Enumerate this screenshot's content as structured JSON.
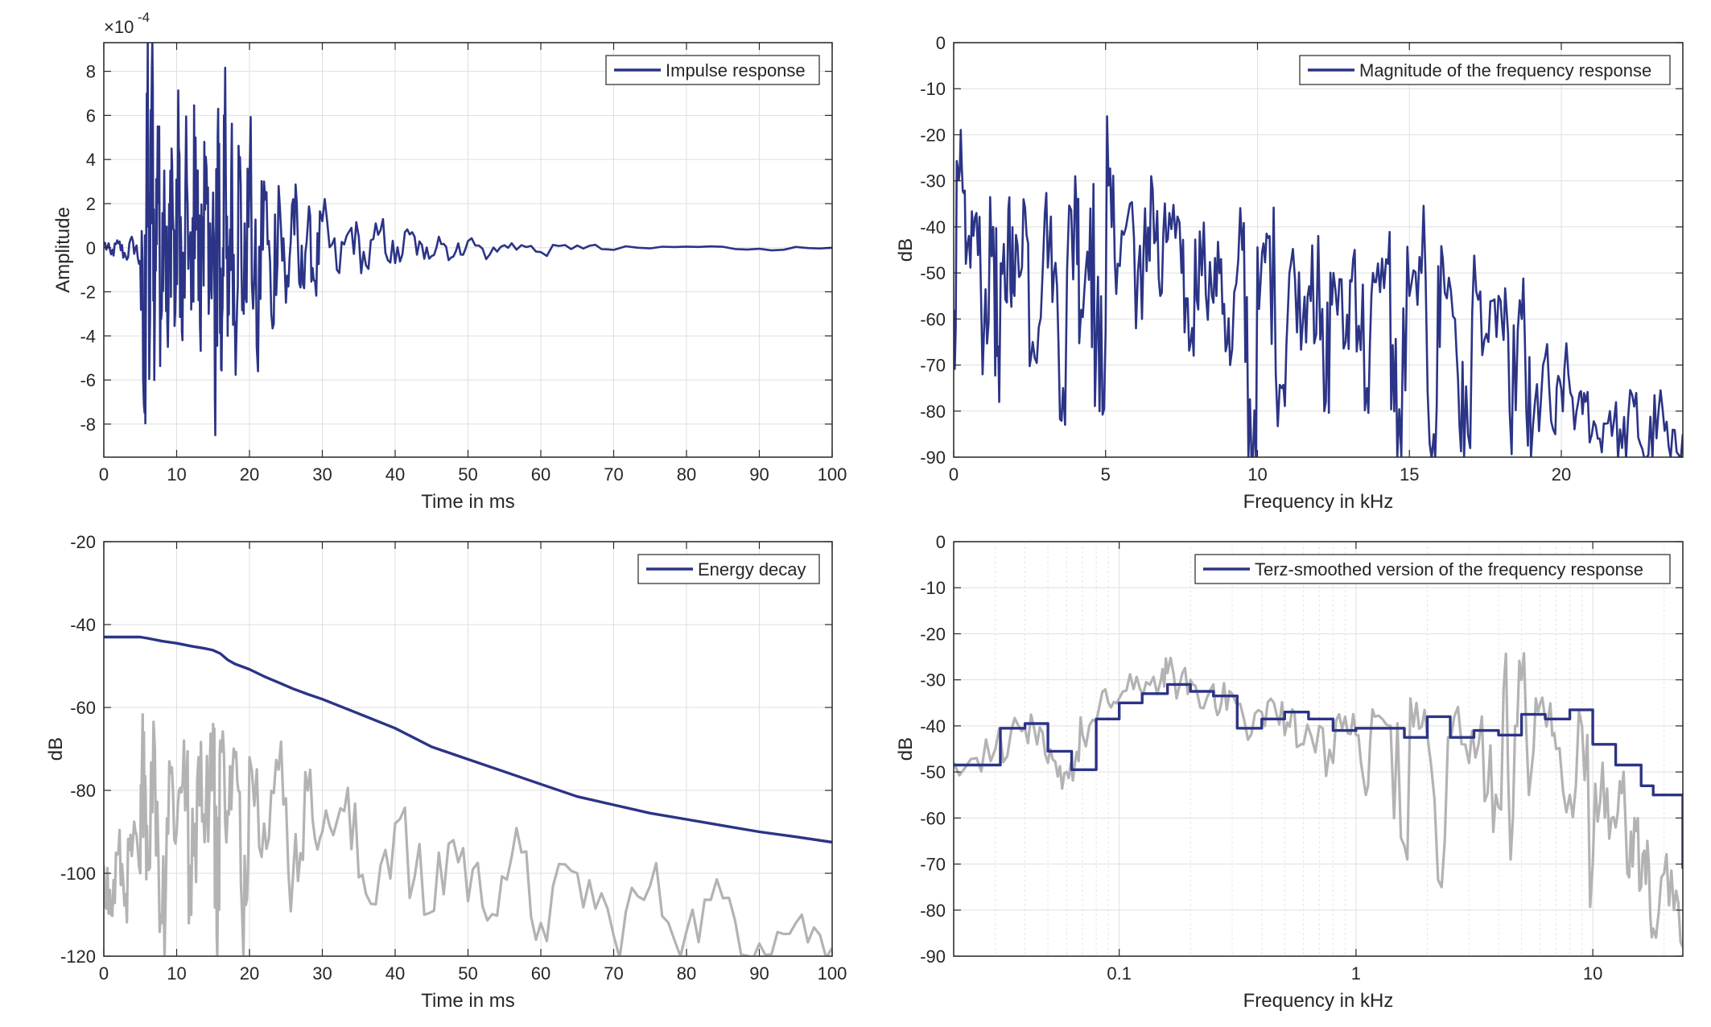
{
  "colors": {
    "primary": "#2b3486",
    "secondary": "#b3b3b3",
    "axis": "#262626",
    "grid": "#dfdfdf"
  },
  "chart_data": [
    {
      "id": "impulse",
      "type": "line",
      "xlabel": "Time in ms",
      "ylabel": "Amplitude",
      "exponent_label": "×10",
      "exponent_power": "-4",
      "xlim": [
        0,
        100
      ],
      "ylim": [
        -9.5,
        9.3
      ],
      "xticks": [
        0,
        10,
        20,
        30,
        40,
        50,
        60,
        70,
        80,
        90,
        100
      ],
      "xtick_labels": [
        "0",
        "10",
        "20",
        "30",
        "40",
        "50",
        "60",
        "70",
        "80",
        "90",
        "100"
      ],
      "yticks": [
        -8,
        -6,
        -4,
        -2,
        0,
        2,
        4,
        6,
        8
      ],
      "ytick_labels": [
        "-8",
        "-6",
        "-4",
        "-2",
        "0",
        "2",
        "4",
        "6",
        "8"
      ],
      "grid": true,
      "legend_position": "top-right",
      "series": [
        {
          "name": "Impulse response",
          "color": "#2b3486",
          "x": [
            0,
            1,
            2,
            3,
            4,
            5,
            5.6,
            5.9,
            6.3,
            6.6,
            7.0,
            7.4,
            7.8,
            8.3,
            8.8,
            9.3,
            9.8,
            10.3,
            10.8,
            11.4,
            12.0,
            12.6,
            13.2,
            13.8,
            14.4,
            15.0,
            15.3,
            15.7,
            16.1,
            16.5,
            17.0,
            17.5,
            18.0,
            18.6,
            19.2,
            20.0,
            21.0,
            22.0,
            23.0,
            24.0,
            25.0,
            26.0,
            27.0,
            28.0,
            29.0,
            30.0,
            32.0,
            34.0,
            36.0,
            38.0,
            40.0,
            42.0,
            44.0,
            46.0,
            48.0,
            50.0,
            53.0,
            56.0,
            60.0,
            65.0,
            70.0,
            80.0,
            90.0,
            100.0
          ],
          "y": [
            0.2,
            -0.3,
            0.2,
            -0.4,
            0.3,
            -0.6,
            -7.5,
            7.0,
            -4.3,
            8.1,
            -3.0,
            5.5,
            -2.5,
            3.5,
            -4.5,
            4.5,
            -3.0,
            4.5,
            -4.2,
            3.0,
            -2.8,
            5.0,
            -3.5,
            4.8,
            -3.0,
            2.5,
            -8.5,
            6.3,
            -5.5,
            6.0,
            -4.0,
            3.5,
            -3.5,
            3.5,
            -3.0,
            3.0,
            -4.5,
            3.0,
            -3.0,
            2.8,
            -2.5,
            2.2,
            -1.8,
            1.0,
            -1.5,
            1.2,
            -1.0,
            0.9,
            -0.8,
            0.8,
            -0.7,
            0.6,
            -0.5,
            0.5,
            -0.4,
            0.3,
            -0.3,
            0.2,
            -0.2,
            0.1,
            -0.1,
            0.05,
            -0.05,
            0.0
          ]
        }
      ]
    },
    {
      "id": "magnitude",
      "type": "line",
      "xlabel": "Frequency in kHz",
      "ylabel": "dB",
      "xlim": [
        0,
        24
      ],
      "ylim": [
        -90,
        0
      ],
      "xticks": [
        0,
        5,
        10,
        15,
        20
      ],
      "xtick_labels": [
        "0",
        "5",
        "10",
        "15",
        "20"
      ],
      "yticks": [
        0,
        -10,
        -20,
        -30,
        -40,
        -50,
        -60,
        -70,
        -80,
        -90
      ],
      "ytick_labels": [
        "0",
        "-10",
        "-20",
        "-30",
        "-40",
        "-50",
        "-60",
        "-70",
        "-80",
        "-90"
      ],
      "grid": true,
      "legend_position": "top-right",
      "series": [
        {
          "name": "Magnitude of the frequency response",
          "color": "#2b3486",
          "x": [
            0,
            0.2,
            0.4,
            0.7,
            1.0,
            1.3,
            1.5,
            1.8,
            2.0,
            2.3,
            2.6,
            3.0,
            3.3,
            3.6,
            4.0,
            4.2,
            4.5,
            4.8,
            5.1,
            5.4,
            5.8,
            6.2,
            6.5,
            6.8,
            7.1,
            7.5,
            7.8,
            8.1,
            8.5,
            8.8,
            9.1,
            9.5,
            9.8,
            10.1,
            10.4,
            10.8,
            11.1,
            11.5,
            11.8,
            12.2,
            12.5,
            12.9,
            13.2,
            13.6,
            13.9,
            14.3,
            14.6,
            15.0,
            15.4,
            15.8,
            16.1,
            16.5,
            16.8,
            17.2,
            17.6,
            18.0,
            18.3,
            18.7,
            19.0,
            19.4,
            19.8,
            20.1,
            20.5,
            20.8,
            21.2,
            21.6,
            22.0,
            22.4,
            22.8,
            23.2,
            23.6,
            24.0
          ],
          "y": [
            -58,
            -28,
            -48,
            -38,
            -62,
            -40,
            -78,
            -36,
            -55,
            -34,
            -65,
            -37,
            -50,
            -75,
            -29,
            -58,
            -36,
            -80,
            -31,
            -48,
            -35,
            -60,
            -29,
            -55,
            -37,
            -50,
            -65,
            -41,
            -55,
            -47,
            -70,
            -45,
            -90,
            -52,
            -42,
            -75,
            -48,
            -60,
            -44,
            -80,
            -50,
            -65,
            -45,
            -75,
            -52,
            -48,
            -90,
            -55,
            -50,
            -85,
            -47,
            -60,
            -90,
            -54,
            -65,
            -56,
            -80,
            -60,
            -90,
            -70,
            -85,
            -71,
            -80,
            -78,
            -86,
            -80,
            -88,
            -79,
            -90,
            -80,
            -90,
            -85
          ]
        }
      ]
    },
    {
      "id": "energy",
      "type": "line",
      "xlabel": "Time in ms",
      "ylabel": "dB",
      "xlim": [
        0,
        100
      ],
      "ylim": [
        -120,
        -20
      ],
      "xticks": [
        0,
        10,
        20,
        30,
        40,
        50,
        60,
        70,
        80,
        90,
        100
      ],
      "xtick_labels": [
        "0",
        "10",
        "20",
        "30",
        "40",
        "50",
        "60",
        "70",
        "80",
        "90",
        "100"
      ],
      "yticks": [
        -20,
        -40,
        -60,
        -80,
        -100,
        -120
      ],
      "ytick_labels": [
        "-20",
        "-40",
        "-60",
        "-80",
        "-100",
        "-120"
      ],
      "grid": true,
      "legend_position": "top-right",
      "series": [
        {
          "name": "Energy decay",
          "color": "#2b3486",
          "x": [
            0,
            2,
            4,
            5,
            6,
            8,
            10,
            12,
            14,
            15,
            16,
            17,
            18,
            20,
            22,
            24,
            26,
            28,
            30,
            35,
            40,
            45,
            50,
            55,
            60,
            65,
            70,
            75,
            80,
            85,
            90,
            95,
            100
          ],
          "y": [
            -43,
            -43,
            -43,
            -43,
            -43.3,
            -44,
            -44.5,
            -45.2,
            -45.8,
            -46.2,
            -47,
            -48.5,
            -49.5,
            -50.8,
            -52.5,
            -54,
            -55.5,
            -56.8,
            -58,
            -61.5,
            -65,
            -69.5,
            -72.5,
            -75.5,
            -78.5,
            -81.5,
            -83.5,
            -85.5,
            -87,
            -88.5,
            -90,
            -91.2,
            -92.5
          ]
        },
        {
          "color": "#b3b3b3",
          "x": [
            0,
            1,
            2,
            3,
            4,
            5,
            5.5,
            6,
            7,
            8,
            9,
            10,
            11,
            12,
            13,
            14,
            15,
            15.5,
            16,
            17,
            18,
            19,
            20,
            22,
            24,
            26,
            28,
            30,
            33,
            36,
            40,
            44,
            48,
            52,
            56,
            60,
            65,
            70,
            75,
            80,
            85,
            90,
            95,
            100
          ],
          "y": [
            -98,
            -110,
            -95,
            -105,
            -92,
            -100,
            -66,
            -95,
            -70,
            -112,
            -73,
            -90,
            -68,
            -110,
            -72,
            -86,
            -64,
            -115,
            -68,
            -85,
            -72,
            -110,
            -72,
            -88,
            -75,
            -100,
            -80,
            -90,
            -85,
            -105,
            -88,
            -110,
            -92,
            -108,
            -96,
            -112,
            -100,
            -115,
            -103,
            -114,
            -106,
            -117,
            -112,
            -118
          ]
        }
      ]
    },
    {
      "id": "terz",
      "type": "line",
      "xlabel": "Frequency in kHz",
      "ylabel": "dB",
      "xscale": "log",
      "xlim": [
        0.02,
        24
      ],
      "ylim": [
        -90,
        0
      ],
      "xticks": [
        0.1,
        1,
        10
      ],
      "xtick_labels": [
        "0.1",
        "1",
        "10"
      ],
      "yticks": [
        0,
        -10,
        -20,
        -30,
        -40,
        -50,
        -60,
        -70,
        -80,
        -90
      ],
      "ytick_labels": [
        "0",
        "-10",
        "-20",
        "-30",
        "-40",
        "-50",
        "-60",
        "-70",
        "-80",
        "-90"
      ],
      "grid": true,
      "legend_position": "top-right",
      "series": [
        {
          "name": "Terz-smoothed version of the frequency response",
          "color": "#2b3486",
          "step": true,
          "x": [
            0.02,
            0.0315,
            0.04,
            0.05,
            0.063,
            0.08,
            0.1,
            0.125,
            0.16,
            0.2,
            0.25,
            0.315,
            0.4,
            0.5,
            0.63,
            0.8,
            1.0,
            1.25,
            1.6,
            2.0,
            2.5,
            3.15,
            4.0,
            5.0,
            6.3,
            8.0,
            10.0,
            12.5,
            16.0,
            18.0,
            24.0
          ],
          "y": [
            -48.5,
            -40.5,
            -39.5,
            -45.5,
            -49.5,
            -38.5,
            -35,
            -33,
            -31,
            -32.5,
            -33.5,
            -40.5,
            -38.5,
            -37,
            -38.5,
            -41,
            -40.5,
            -40.5,
            -42.5,
            -38,
            -42.5,
            -41,
            -42,
            -37.5,
            -38.5,
            -36.5,
            -44,
            -48.5,
            -53,
            -55,
            -71
          ]
        },
        {
          "color": "#b3b3b3",
          "x": [
            0.02,
            0.025,
            0.03,
            0.035,
            0.04,
            0.045,
            0.05,
            0.055,
            0.06,
            0.065,
            0.07,
            0.08,
            0.09,
            0.1,
            0.115,
            0.13,
            0.15,
            0.16,
            0.18,
            0.2,
            0.22,
            0.25,
            0.27,
            0.3,
            0.35,
            0.4,
            0.45,
            0.5,
            0.55,
            0.6,
            0.7,
            0.8,
            0.9,
            1.0,
            1.1,
            1.2,
            1.4,
            1.6,
            1.8,
            2.0,
            2.3,
            2.6,
            3.0,
            3.4,
            3.8,
            4.2,
            4.6,
            5.0,
            5.5,
            6.0,
            6.5,
            7.0,
            8.0,
            9.0,
            10.0,
            11.0,
            12.0,
            13.0,
            14.0,
            15.0,
            16.0,
            17.0,
            18.0,
            20.0,
            22.0,
            24.0
          ],
          "y": [
            -48,
            -47,
            -45,
            -41,
            -40.5,
            -44,
            -48,
            -51,
            -50,
            -48,
            -42,
            -39,
            -35,
            -34,
            -32,
            -30.5,
            -30,
            -28.5,
            -31,
            -30,
            -36,
            -31,
            -35,
            -33,
            -43,
            -37,
            -35,
            -42,
            -37,
            -44,
            -40,
            -48,
            -38,
            -42,
            -55,
            -38,
            -40,
            -66,
            -35,
            -42,
            -75,
            -38,
            -48,
            -38,
            -63,
            -32,
            -60,
            -30,
            -50,
            -35,
            -38,
            -45,
            -55,
            -40,
            -70,
            -48,
            -60,
            -52,
            -72,
            -60,
            -75,
            -65,
            -84,
            -72,
            -80,
            -88
          ]
        }
      ]
    }
  ]
}
